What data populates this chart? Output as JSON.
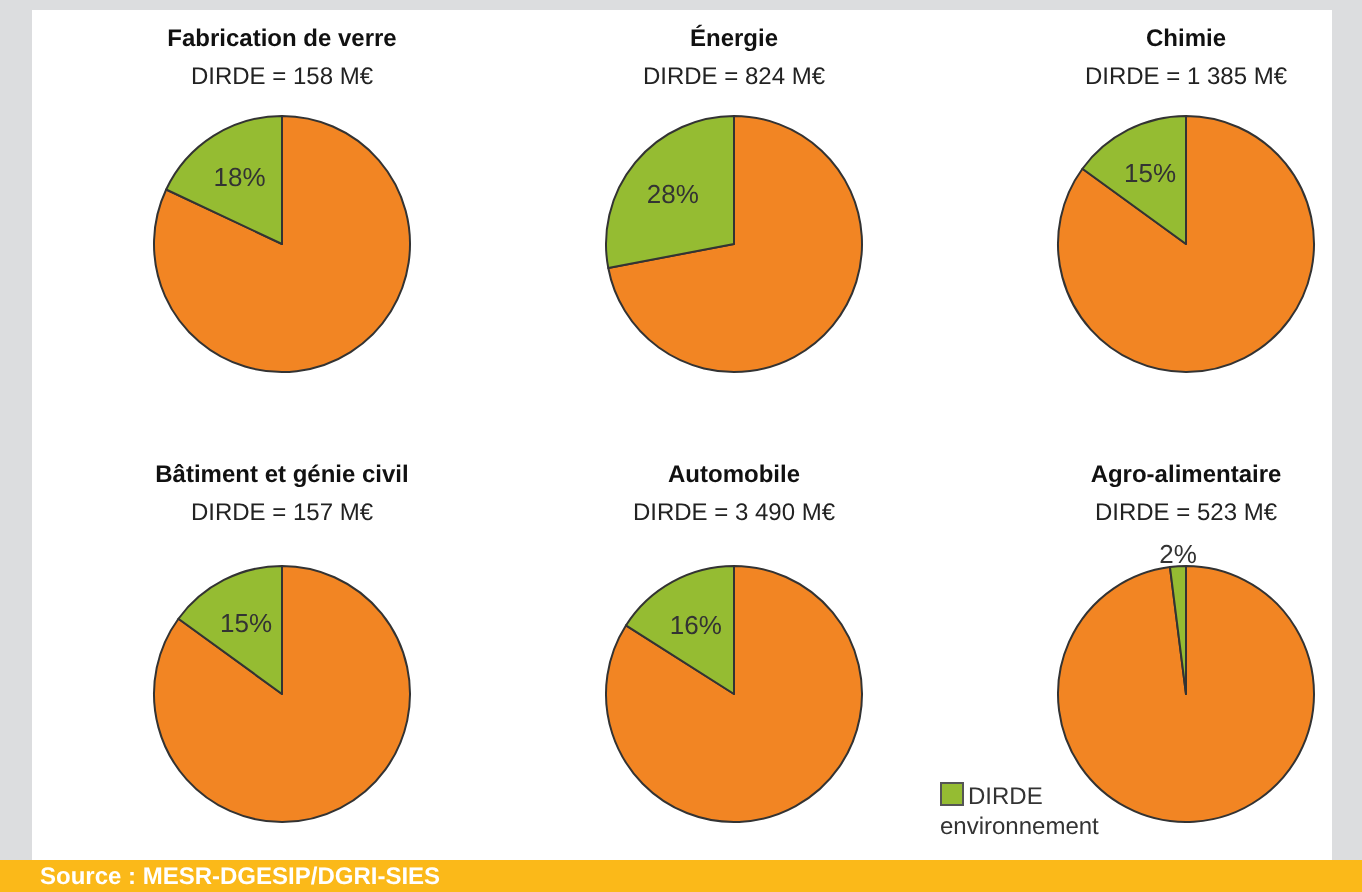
{
  "chart_data": [
    {
      "type": "pie",
      "title": "Fabrication de verre",
      "subtitle": "DIRDE = 158 M€",
      "categories": [
        null,
        null
      ],
      "values": [
        82,
        18
      ],
      "colors": [
        "#f28523",
        "#95bc32"
      ],
      "value_labels": [
        null,
        "18%"
      ]
    },
    {
      "type": "pie",
      "title": "Énergie",
      "subtitle": "DIRDE = 824 M€",
      "categories": [
        null,
        null
      ],
      "values": [
        72,
        28
      ],
      "colors": [
        "#f28523",
        "#95bc32"
      ],
      "value_labels": [
        null,
        "28%"
      ]
    },
    {
      "type": "pie",
      "title": "Chimie",
      "subtitle": "DIRDE = 1 385 M€",
      "categories": [
        null,
        null
      ],
      "values": [
        85,
        15
      ],
      "colors": [
        "#f28523",
        "#95bc32"
      ],
      "value_labels": [
        null,
        "15%"
      ]
    },
    {
      "type": "pie",
      "title": "Bâtiment et génie civil",
      "subtitle": "DIRDE = 157 M€",
      "categories": [
        null,
        null
      ],
      "values": [
        85,
        15
      ],
      "colors": [
        "#f28523",
        "#95bc32"
      ],
      "value_labels": [
        null,
        "15%"
      ]
    },
    {
      "type": "pie",
      "title": "Automobile",
      "subtitle": "DIRDE = 3 490 M€",
      "categories": [
        null,
        "DIRDE environnement"
      ],
      "values": [
        84,
        16
      ],
      "colors": [
        "#f28523",
        "#95bc32"
      ],
      "value_labels": [
        null,
        "16%"
      ],
      "legend": "bottom right"
    },
    {
      "type": "pie",
      "title": "Agro-alimentaire",
      "subtitle": "DIRDE = 523 M€",
      "categories": [
        null,
        null
      ],
      "values": [
        98,
        2
      ],
      "colors": [
        "#f28523",
        "#95bc32"
      ],
      "value_labels": [
        null,
        "2%"
      ],
      "annotations": [
        "Source : MESR-DGESIP/DGRI-SIES"
      ]
    }
  ]
}
